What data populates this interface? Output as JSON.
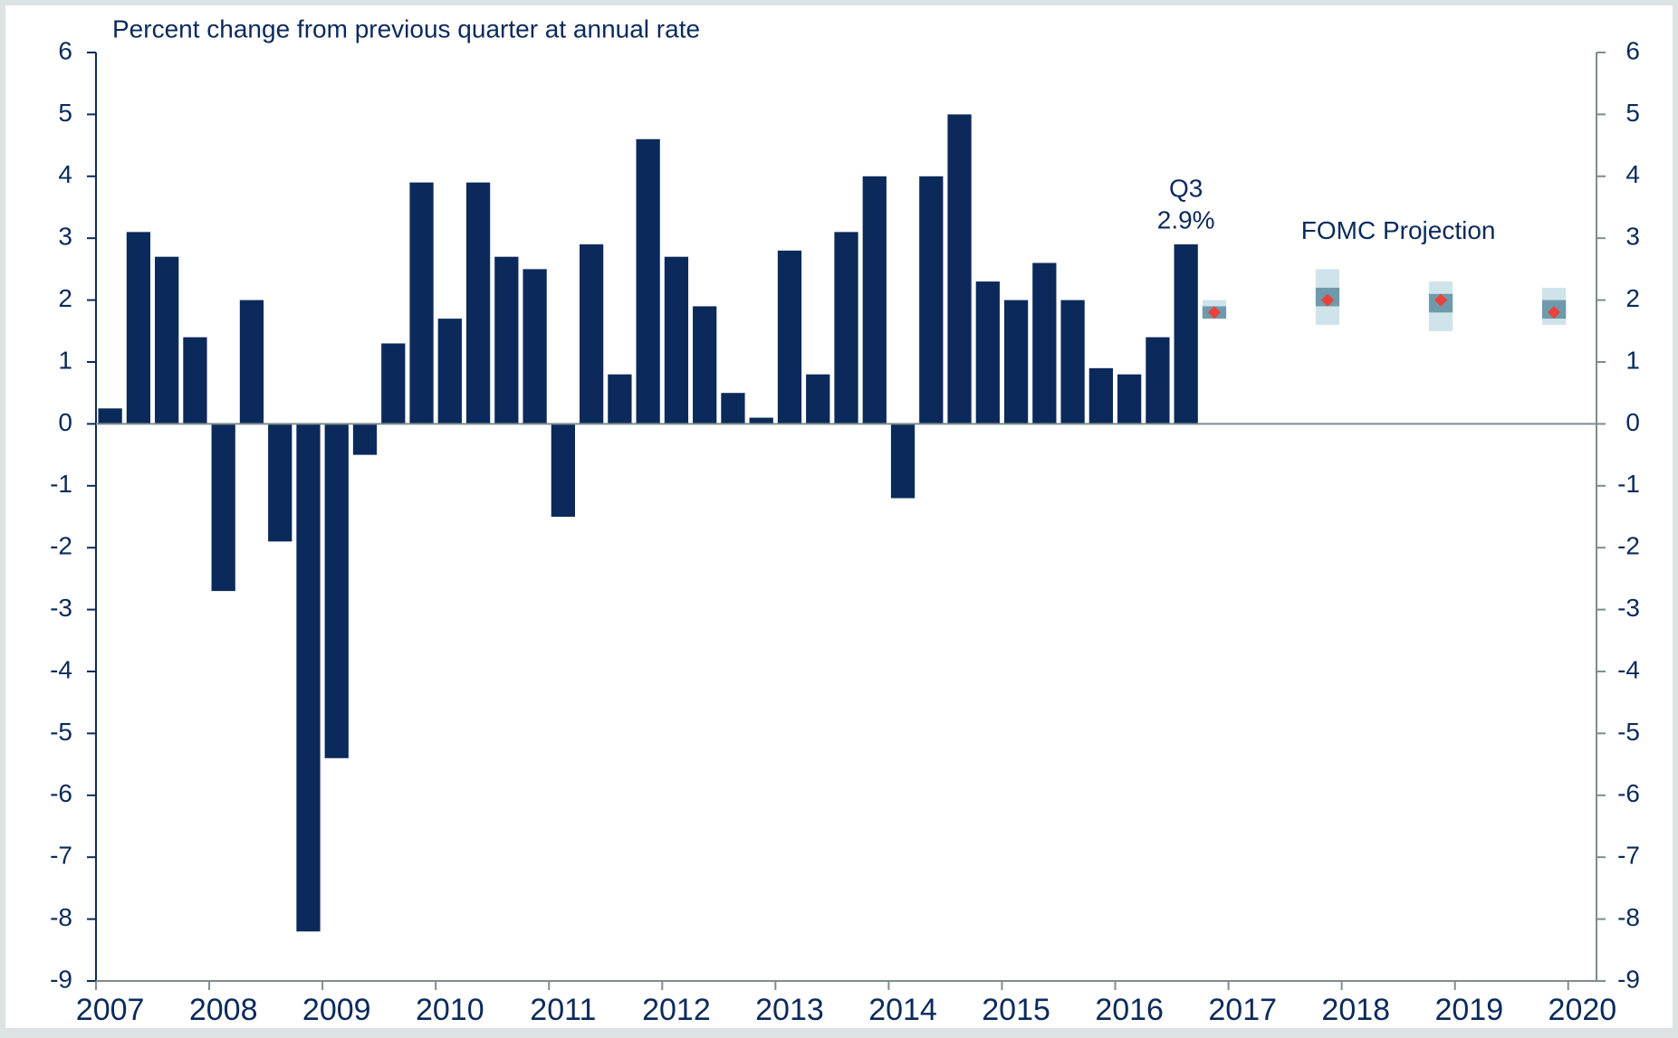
{
  "chart_data": {
    "type": "bar",
    "y_axis_label": "Percent change from previous quarter at annual rate",
    "categories": [
      "2007",
      null,
      null,
      null,
      "2008",
      null,
      null,
      null,
      "2009",
      null,
      null,
      null,
      "2010",
      null,
      null,
      null,
      "2011",
      null,
      null,
      null,
      "2012",
      null,
      null,
      null,
      "2013",
      null,
      null,
      null,
      "2014",
      null,
      null,
      null,
      "2015",
      null,
      null,
      null,
      "2016",
      null,
      null,
      null,
      "2017",
      null,
      null,
      null,
      "2018",
      null,
      null,
      null,
      "2019",
      null,
      null,
      null,
      "2020"
    ],
    "values": [
      0.25,
      3.1,
      2.7,
      1.4,
      -2.7,
      2.0,
      -1.9,
      -8.2,
      -5.4,
      -0.5,
      1.3,
      3.9,
      1.7,
      3.9,
      2.7,
      2.5,
      -1.5,
      2.9,
      0.8,
      4.6,
      2.7,
      1.9,
      0.5,
      0.1,
      2.8,
      0.8,
      3.1,
      4.0,
      -1.2,
      4.0,
      5.0,
      2.3,
      2.0,
      2.6,
      2.0,
      0.9,
      0.8,
      1.4,
      2.9,
      null,
      null,
      null,
      null,
      null,
      null,
      null,
      null,
      null,
      null,
      null,
      null,
      null,
      null
    ],
    "value_labels": [
      null,
      null,
      null,
      null,
      null,
      null,
      null,
      null,
      null,
      null,
      null,
      null,
      null,
      null,
      null,
      null,
      null,
      null,
      null,
      null,
      null,
      null,
      null,
      null,
      null,
      null,
      null,
      null,
      null,
      null,
      null,
      null,
      null,
      null,
      null,
      null,
      null,
      null,
      "2.9%",
      null,
      null,
      null,
      null,
      null,
      null,
      null,
      null,
      null,
      null,
      null,
      null,
      null,
      null
    ],
    "color": "#0b2a5b",
    "annotations": [
      "Q3",
      "FOMC Projection"
    ],
    "projection": {
      "median": [
        null,
        null,
        null,
        null,
        null,
        null,
        null,
        null,
        null,
        null,
        null,
        null,
        null,
        null,
        null,
        null,
        null,
        null,
        null,
        null,
        null,
        null,
        null,
        null,
        null,
        null,
        null,
        null,
        null,
        null,
        null,
        null,
        null,
        null,
        null,
        null,
        null,
        null,
        null,
        1.8,
        null,
        null,
        null,
        2.0,
        null,
        null,
        null,
        2.0,
        null,
        null,
        null,
        1.8,
        null
      ],
      "central_low": [
        null,
        null,
        null,
        null,
        null,
        null,
        null,
        null,
        null,
        null,
        null,
        null,
        null,
        null,
        null,
        null,
        null,
        null,
        null,
        null,
        null,
        null,
        null,
        null,
        null,
        null,
        null,
        null,
        null,
        null,
        null,
        null,
        null,
        null,
        null,
        null,
        null,
        null,
        null,
        1.7,
        null,
        null,
        null,
        1.9,
        null,
        null,
        null,
        1.8,
        null,
        null,
        null,
        1.7,
        null
      ],
      "central_high": [
        null,
        null,
        null,
        null,
        null,
        null,
        null,
        null,
        null,
        null,
        null,
        null,
        null,
        null,
        null,
        null,
        null,
        null,
        null,
        null,
        null,
        null,
        null,
        null,
        null,
        null,
        null,
        null,
        null,
        null,
        null,
        null,
        null,
        null,
        null,
        null,
        null,
        null,
        null,
        1.9,
        null,
        null,
        null,
        2.2,
        null,
        null,
        null,
        2.1,
        null,
        null,
        null,
        2.0,
        null
      ],
      "range_low": [
        null,
        null,
        null,
        null,
        null,
        null,
        null,
        null,
        null,
        null,
        null,
        null,
        null,
        null,
        null,
        null,
        null,
        null,
        null,
        null,
        null,
        null,
        null,
        null,
        null,
        null,
        null,
        null,
        null,
        null,
        null,
        null,
        null,
        null,
        null,
        null,
        null,
        null,
        null,
        1.7,
        null,
        null,
        null,
        1.6,
        null,
        null,
        null,
        1.5,
        null,
        null,
        null,
        1.6,
        null
      ],
      "range_high": [
        null,
        null,
        null,
        null,
        null,
        null,
        null,
        null,
        null,
        null,
        null,
        null,
        null,
        null,
        null,
        null,
        null,
        null,
        null,
        null,
        null,
        null,
        null,
        null,
        null,
        null,
        null,
        null,
        null,
        null,
        null,
        null,
        null,
        null,
        null,
        null,
        null,
        null,
        null,
        2.0,
        null,
        null,
        null,
        2.5,
        null,
        null,
        null,
        2.3,
        null,
        null,
        null,
        2.2,
        null
      ],
      "median_color": "#e8423a",
      "central_color": "#6f9aab",
      "range_color": "#cfe3ea"
    },
    "ylim": [
      -9,
      6
    ],
    "yticks": [
      -9,
      -8,
      -7,
      -6,
      -5,
      -4,
      -3,
      -2,
      -1,
      0,
      1,
      2,
      3,
      4,
      5,
      6
    ],
    "y2lim": [
      -9,
      6
    ],
    "y2ticks": [
      -9,
      -8,
      -7,
      -6,
      -5,
      -4,
      -3,
      -2,
      -1,
      0,
      1,
      2,
      3,
      4,
      5,
      6
    ],
    "grid": false
  }
}
